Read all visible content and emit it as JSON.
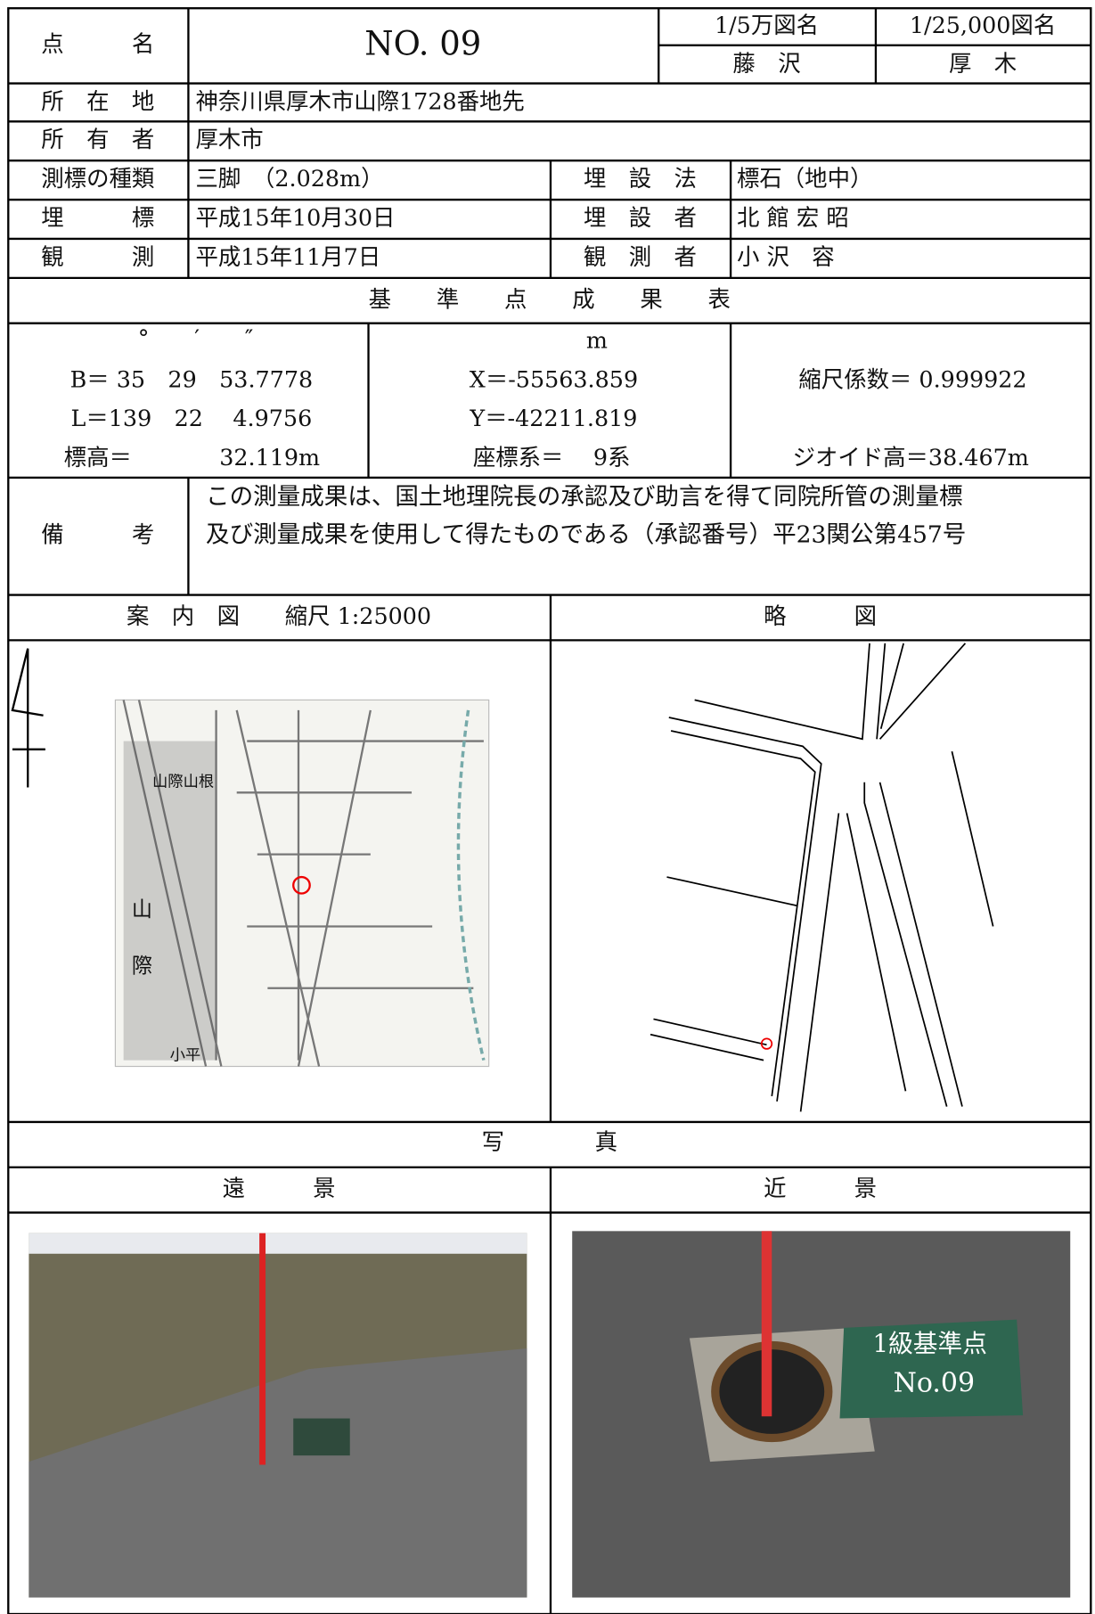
{
  "header": {
    "point_name_label": "点　　　名",
    "point_name": "NO. 09",
    "map_50000_label": "1/5万図名",
    "map_50000": "藤　沢",
    "map_25000_label": "1/25,000図名",
    "map_25000": "厚　木"
  },
  "info": [
    [
      "所　在　地",
      "神奈川県厚木市山際1728番地先"
    ],
    [
      "所　有　者",
      "厚木市"
    ]
  ],
  "details": [
    [
      "測標の種類",
      "三脚　（2.028m）",
      "埋　設　法",
      "標石（地中）"
    ],
    [
      "埋　　　標",
      "平成15年10月30日",
      "埋　設　者",
      "北 館 宏 昭"
    ],
    [
      "観　　　測",
      "平成15年11月7日",
      "観　測　者",
      "小 沢　容"
    ]
  ],
  "results": {
    "title": "基　　準　　点　　成　　果　　表",
    "angle_units": "°　　′　　″",
    "latitude": "B＝ 35　29　53.7778",
    "longitude": "L＝139　22　 4.9756",
    "height_label": "標高＝",
    "height": "32.119m",
    "unit": "m",
    "x": "X＝-55563.859",
    "y": "Y＝-42211.819",
    "coord_system": "座標系＝　 9系",
    "scale_factor": "縮尺係数＝ 0.999922",
    "geoid_height": "ジオイド高＝38.467m"
  },
  "remarks": {
    "label": "備　　　考",
    "lines": [
      "この測量成果は、国土地理院長の承認及び助言を得て同院所管の測量標",
      "及び測量成果を使用して得たものである（承認番号）平23関公第457号"
    ]
  },
  "guide_map": {
    "title": "案　内　図　　縮尺 1:25000",
    "labels": [
      "山際山根",
      "山",
      "際",
      "小平"
    ]
  },
  "sketch": {
    "title": "略　　　図"
  },
  "photos": {
    "title": "写　　　　真",
    "far": "遠　　　景",
    "near": "近　　　景",
    "board": [
      "1級基準点",
      "No.09"
    ]
  }
}
